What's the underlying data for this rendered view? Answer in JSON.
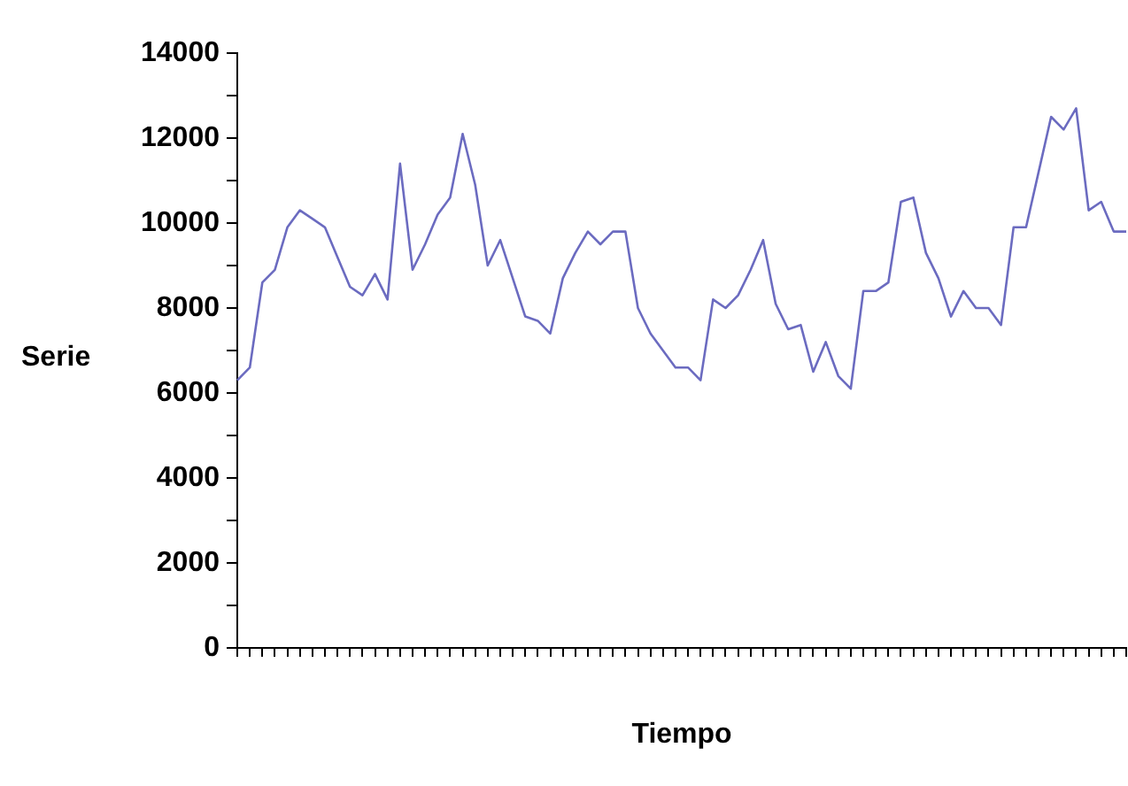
{
  "chart_data": {
    "type": "line",
    "xlabel": "Tiempo",
    "ylabel": "Serie",
    "categories": [
      null,
      null,
      null,
      null,
      null,
      null,
      null,
      null,
      null,
      null,
      null,
      null,
      null,
      null,
      null,
      null,
      null,
      null,
      null,
      null,
      null,
      null,
      null,
      null,
      null,
      null,
      null,
      null,
      null,
      null,
      null,
      null,
      null,
      null,
      null,
      null,
      null,
      null,
      null,
      null,
      null,
      null,
      null,
      null,
      null,
      null,
      null,
      null,
      null,
      null,
      null,
      null,
      null,
      null,
      null,
      null,
      null,
      null,
      null,
      null,
      null,
      null,
      null,
      null,
      null,
      null,
      null,
      null,
      null,
      null,
      null,
      null
    ],
    "series": [
      {
        "color": "#6b6bc0",
        "values": [
          6300,
          6600,
          8600,
          8900,
          9900,
          10300,
          10100,
          9900,
          9200,
          8500,
          8300,
          8800,
          8200,
          11400,
          8900,
          9500,
          10200,
          10600,
          12100,
          10900,
          9000,
          9600,
          8700,
          7800,
          7700,
          7400,
          8700,
          9300,
          9800,
          9500,
          9800,
          9800,
          8000,
          7400,
          7000,
          6600,
          6600,
          6300,
          8200,
          8000,
          8300,
          8900,
          9600,
          8100,
          7500,
          7600,
          6500,
          7200,
          6400,
          6100,
          8400,
          8400,
          8600,
          10500,
          10600,
          9300,
          8700,
          7800,
          8400,
          8000,
          8000,
          7600,
          9900,
          9900,
          11200,
          12500,
          12200,
          12700,
          10300,
          10500,
          9800,
          9800
        ]
      }
    ],
    "ylim": [
      0,
      14000
    ],
    "yticks": [
      0,
      {
        "value": 1000,
        "label": null
      },
      2000,
      {
        "value": 3000,
        "label": null
      },
      4000,
      {
        "value": 5000,
        "label": null
      },
      6000,
      {
        "value": 7000,
        "label": null
      },
      8000,
      {
        "value": 9000,
        "label": null
      },
      10000,
      {
        "value": 11000,
        "label": null
      },
      12000,
      {
        "value": 13000,
        "label": null
      },
      14000
    ],
    "tick_labels": "y",
    "grid": false,
    "legend": false,
    "marker": "none",
    "line_style": "solid"
  }
}
